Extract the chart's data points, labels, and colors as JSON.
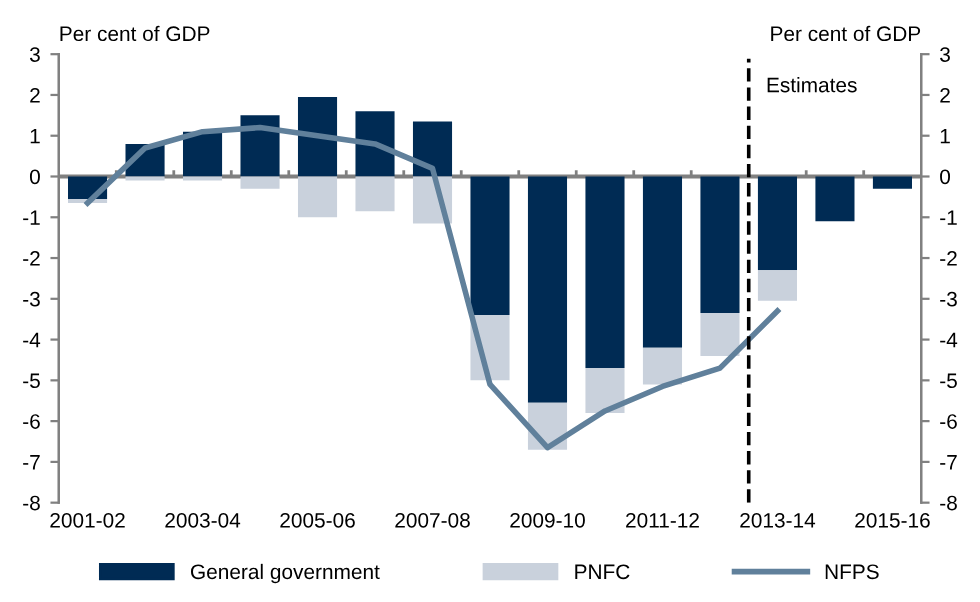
{
  "chart_data": {
    "type": "bar",
    "stacked": true,
    "categories": [
      "2001-02",
      null,
      "2003-04",
      null,
      "2005-06",
      null,
      "2007-08",
      null,
      "2009-10",
      null,
      "2011-12",
      null,
      "2013-14",
      null,
      "2015-16"
    ],
    "series": [
      {
        "name": "General government",
        "color": "#002b54",
        "values": [
          -0.55,
          0.8,
          1.1,
          1.5,
          1.95,
          1.6,
          1.35,
          -3.4,
          -5.55,
          -4.7,
          -4.2,
          -3.35,
          -2.3,
          -1.1,
          -0.3
        ]
      },
      {
        "name": "PNFC",
        "color": "#c9d1dc",
        "values": [
          -0.1,
          -0.1,
          -0.1,
          -0.3,
          -1.0,
          -0.85,
          -1.15,
          -1.6,
          -1.15,
          -1.1,
          -0.9,
          -1.05,
          -0.75,
          null,
          null
        ]
      },
      {
        "name": "NFPS",
        "type": "line",
        "color": "#60809b",
        "values": [
          -0.65,
          0.7,
          1.1,
          1.2,
          1.0,
          0.8,
          0.2,
          -5.1,
          -6.65,
          -5.75,
          -5.15,
          -4.7,
          -3.3,
          null,
          null
        ]
      }
    ],
    "ylabel": "Per cent of GDP",
    "y2label": "Per cent of GDP",
    "ylim": [
      -8,
      3
    ],
    "yticks": [
      -8,
      -7,
      -6,
      -5,
      -4,
      -3,
      -2,
      -1,
      0,
      1,
      2,
      3
    ],
    "y2lim": [
      -8,
      3
    ],
    "y2ticks": [
      -8,
      -7,
      -6,
      -5,
      -4,
      -3,
      -2,
      -1,
      0,
      1,
      2,
      3
    ],
    "ref_lines": [
      {
        "axis": "x",
        "value": "2013-14",
        "label": "Estimates",
        "color": "#000000",
        "line_style": "dashed"
      }
    ],
    "grid": false,
    "legend": "bottom"
  }
}
